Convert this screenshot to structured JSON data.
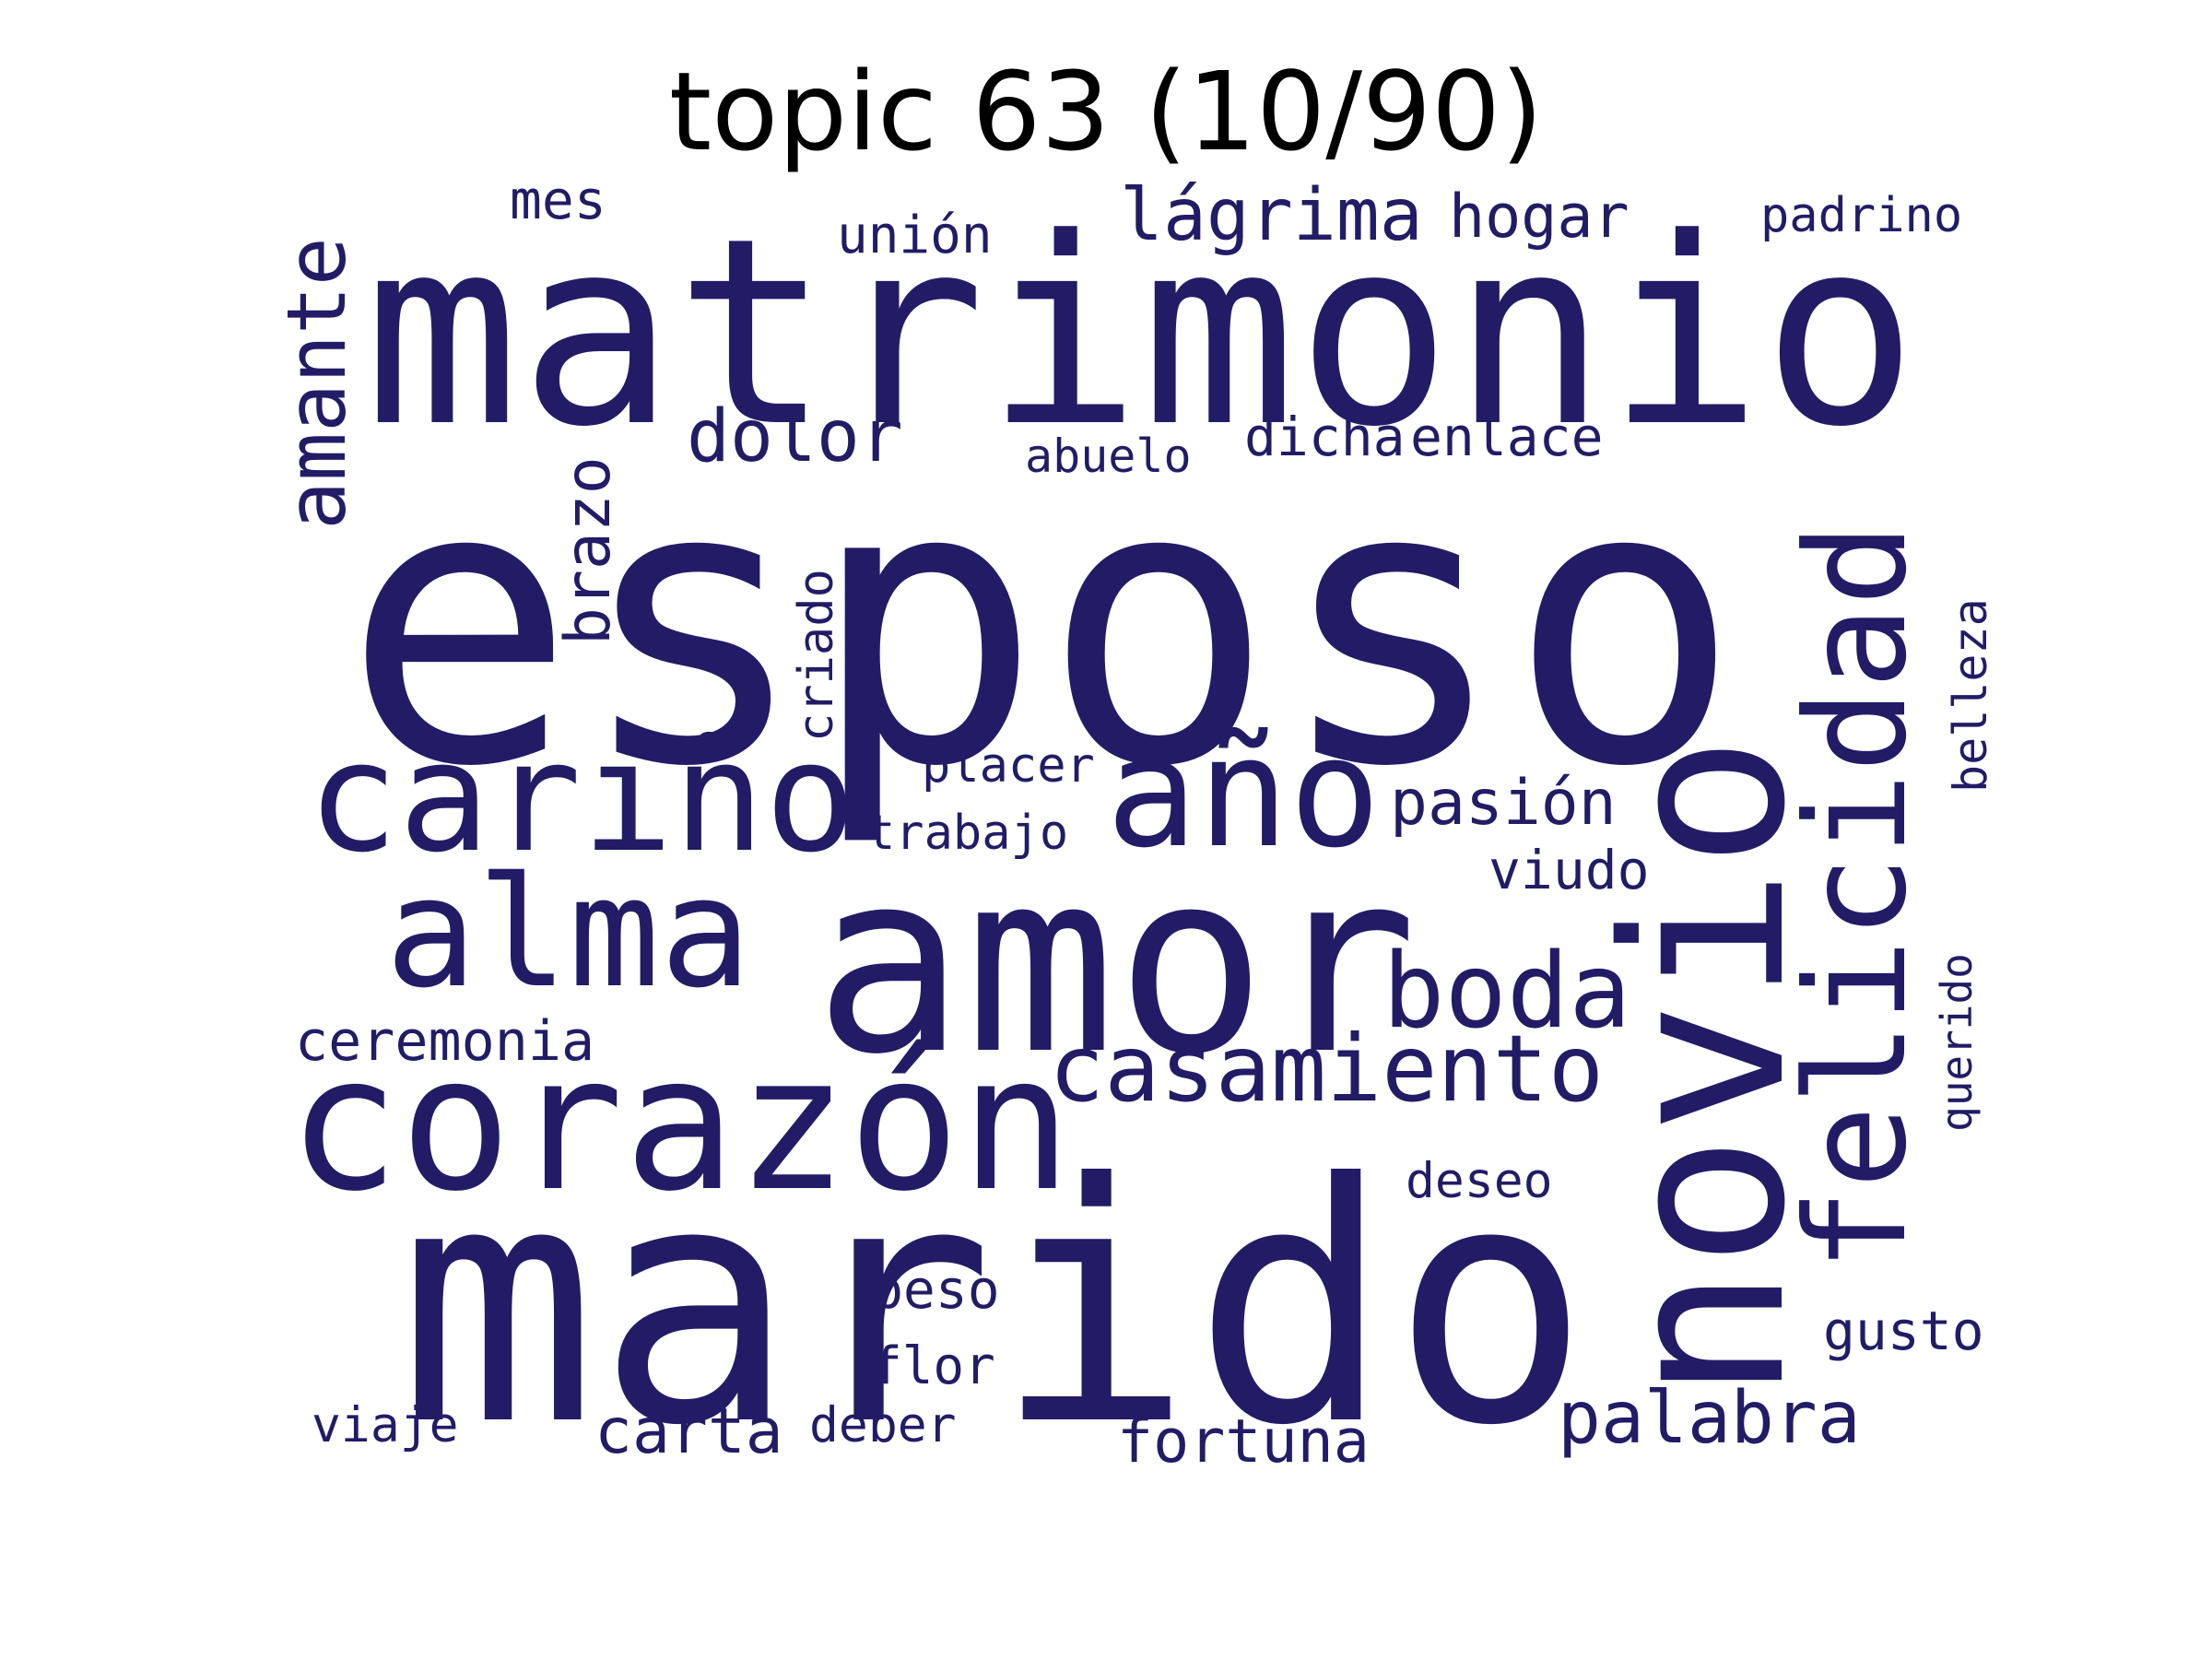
{
  "title": "topic 63 (10/90)",
  "word_color": "#221c66",
  "title_color": "#000000",
  "words": [
    {
      "text": "esposo",
      "weight": 1.0,
      "orientation": "horizontal"
    },
    {
      "text": "marido",
      "weight": 0.92,
      "orientation": "horizontal"
    },
    {
      "text": "matrimonio",
      "weight": 0.74,
      "orientation": "horizontal"
    },
    {
      "text": "novio",
      "weight": 0.72,
      "orientation": "vertical"
    },
    {
      "text": "amor",
      "weight": 0.66,
      "orientation": "horizontal"
    },
    {
      "text": "felicidad",
      "weight": 0.5,
      "orientation": "vertical"
    },
    {
      "text": "corazón",
      "weight": 0.5,
      "orientation": "horizontal"
    },
    {
      "text": "cariño",
      "weight": 0.44,
      "orientation": "horizontal"
    },
    {
      "text": "año",
      "weight": 0.44,
      "orientation": "horizontal"
    },
    {
      "text": "alma",
      "weight": 0.44,
      "orientation": "horizontal"
    },
    {
      "text": "boda",
      "weight": 0.32,
      "orientation": "horizontal"
    },
    {
      "text": "casamiento",
      "weight": 0.3,
      "orientation": "horizontal"
    },
    {
      "text": "amante",
      "weight": 0.3,
      "orientation": "vertical"
    },
    {
      "text": "lágrima",
      "weight": 0.26,
      "orientation": "horizontal"
    },
    {
      "text": "dolor",
      "weight": 0.25,
      "orientation": "horizontal"
    },
    {
      "text": "palabra",
      "weight": 0.25,
      "orientation": "horizontal"
    },
    {
      "text": "pasión",
      "weight": 0.23,
      "orientation": "horizontal"
    },
    {
      "text": "carta",
      "weight": 0.23,
      "orientation": "horizontal"
    },
    {
      "text": "fortuna",
      "weight": 0.22,
      "orientation": "horizontal"
    },
    {
      "text": "hogar",
      "weight": 0.22,
      "orientation": "horizontal"
    },
    {
      "text": "brazo",
      "weight": 0.21,
      "orientation": "vertical"
    },
    {
      "text": "dicha",
      "weight": 0.2,
      "orientation": "horizontal"
    },
    {
      "text": "enlace",
      "weight": 0.19,
      "orientation": "horizontal"
    },
    {
      "text": "ceremonia",
      "weight": 0.2,
      "orientation": "horizontal"
    },
    {
      "text": "gusto",
      "weight": 0.2,
      "orientation": "horizontal"
    },
    {
      "text": "viudo",
      "weight": 0.19,
      "orientation": "horizontal"
    },
    {
      "text": "mes",
      "weight": 0.19,
      "orientation": "horizontal"
    },
    {
      "text": "padrino",
      "weight": 0.18,
      "orientation": "horizontal"
    },
    {
      "text": "unión",
      "weight": 0.18,
      "orientation": "horizontal"
    },
    {
      "text": "beso",
      "weight": 0.19,
      "orientation": "horizontal"
    },
    {
      "text": "flor",
      "weight": 0.18,
      "orientation": "horizontal"
    },
    {
      "text": "deseo",
      "weight": 0.18,
      "orientation": "horizontal"
    },
    {
      "text": "deber",
      "weight": 0.18,
      "orientation": "horizontal"
    },
    {
      "text": "viaje",
      "weight": 0.18,
      "orientation": "horizontal"
    },
    {
      "text": "criado",
      "weight": 0.17,
      "orientation": "vertical"
    },
    {
      "text": "belleza",
      "weight": 0.17,
      "orientation": "vertical"
    },
    {
      "text": "querido",
      "weight": 0.16,
      "orientation": "vertical"
    },
    {
      "text": "placer",
      "weight": 0.17,
      "orientation": "horizontal"
    },
    {
      "text": "trabajo",
      "weight": 0.17,
      "orientation": "horizontal"
    },
    {
      "text": "abuelo",
      "weight": 0.16,
      "orientation": "horizontal"
    }
  ]
}
